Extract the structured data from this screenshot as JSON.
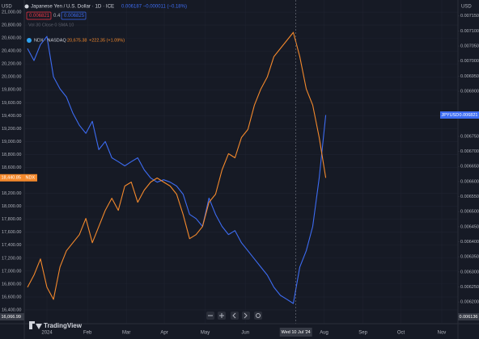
{
  "header": {
    "left_unit": "USD",
    "right_unit": "USD",
    "title": "Japanese Yen / U.S. Dollar · 1D · ICE",
    "sell": "0.006821",
    "spread": "0.4",
    "buy": "0.006825",
    "change": "0.006187 −0.000011 (−0.18%)",
    "indicator": "Vol 30 Close 0 SMA 10",
    "compare_symbol": "NDX · NASDAQ",
    "compare_price": "20,675.38",
    "compare_change": "+222.35 (+1.09%)",
    "logo": "TradingView"
  },
  "chart_data": {
    "type": "line",
    "xlim": [
      -0.5,
      66.4
    ],
    "xticks": [
      {
        "value": 3,
        "label": "2024"
      },
      {
        "value": 9.25,
        "label": "Feb"
      },
      {
        "value": 15.25,
        "label": "Mar"
      },
      {
        "value": 21.1,
        "label": "Apr"
      },
      {
        "value": 27.4,
        "label": "May"
      },
      {
        "value": 33.6,
        "label": "Jun"
      },
      {
        "value": 45.75,
        "label": "Aug"
      },
      {
        "value": 51.75,
        "label": "Sep"
      },
      {
        "value": 57.6,
        "label": "Oct"
      },
      {
        "value": 63.9,
        "label": "Nov"
      }
    ],
    "ylim": [
      16187.5,
      21187.5
    ],
    "yticks": [
      {
        "value": 16400,
        "label": "16,400.00"
      },
      {
        "value": 16600,
        "label": "16,600.00"
      },
      {
        "value": 16800,
        "label": "16,800.00"
      },
      {
        "value": 17000,
        "label": "17,000.00"
      },
      {
        "value": 17200,
        "label": "17,200.00"
      },
      {
        "value": 17400,
        "label": "17,400.00"
      },
      {
        "value": 17600,
        "label": "17,600.00"
      },
      {
        "value": 17800,
        "label": "17,800.00"
      },
      {
        "value": 18000,
        "label": "18,000.00"
      },
      {
        "value": 18200,
        "label": "18,200.00"
      },
      {
        "value": 18600,
        "label": "18,600.00"
      },
      {
        "value": 18800,
        "label": "18,800.00"
      },
      {
        "value": 19000,
        "label": "19,000.00"
      },
      {
        "value": 19200,
        "label": "19,200.00"
      },
      {
        "value": 19400,
        "label": "19,400.00"
      },
      {
        "value": 19600,
        "label": "19,600.00"
      },
      {
        "value": 19800,
        "label": "19,800.00"
      },
      {
        "value": 20000,
        "label": "20,000.00"
      },
      {
        "value": 20200,
        "label": "20,200.00"
      },
      {
        "value": 20400,
        "label": "20,400.00"
      },
      {
        "value": 20600,
        "label": "20,600.00"
      },
      {
        "value": 20800,
        "label": "20,800.00"
      },
      {
        "value": 21000,
        "label": "21,000.00"
      }
    ],
    "y2lim": [
      0.006128,
      0.007203
    ],
    "y2ticks": [
      {
        "value": 0.0062,
        "label": "0.006200"
      },
      {
        "value": 0.00625,
        "label": "0.006250"
      },
      {
        "value": 0.0063,
        "label": "0.006300"
      },
      {
        "value": 0.00635,
        "label": "0.006350"
      },
      {
        "value": 0.0064,
        "label": "0.006400"
      },
      {
        "value": 0.00645,
        "label": "0.006450"
      },
      {
        "value": 0.0065,
        "label": "0.006500"
      },
      {
        "value": 0.00655,
        "label": "0.006550"
      },
      {
        "value": 0.0066,
        "label": "0.006600"
      },
      {
        "value": 0.00665,
        "label": "0.006650"
      },
      {
        "value": 0.0067,
        "label": "0.006700"
      },
      {
        "value": 0.00675,
        "label": "0.006750"
      },
      {
        "value": 0.0069,
        "label": "0.006900"
      },
      {
        "value": 0.00695,
        "label": "0.006950"
      },
      {
        "value": 0.007,
        "label": "0.007000"
      },
      {
        "value": 0.00705,
        "label": "0.007050"
      },
      {
        "value": 0.0071,
        "label": "0.007100"
      },
      {
        "value": 0.00715,
        "label": "0.007150"
      }
    ],
    "grid": true,
    "series": [
      {
        "name": "JPYUSD",
        "color": "#3d6cf2",
        "axis": "y2",
        "tag": "0.006821",
        "values": [
          0.007042,
          0.007002,
          0.007055,
          0.007082,
          0.006948,
          0.006908,
          0.006881,
          0.006827,
          0.006787,
          0.00676,
          0.0068,
          0.006706,
          0.006733,
          0.006679,
          0.006666,
          0.006652,
          0.006666,
          0.006679,
          0.006639,
          0.006612,
          0.006598,
          0.006606,
          0.006598,
          0.006585,
          0.006558,
          0.006491,
          0.006477,
          0.006451,
          0.006545,
          0.006491,
          0.006451,
          0.006424,
          0.006437,
          0.006397,
          0.00637,
          0.006343,
          0.006316,
          0.006289,
          0.006249,
          0.006222,
          0.006209,
          0.006195,
          0.006316,
          0.00637,
          0.006451,
          0.006612,
          0.006821
        ]
      },
      {
        "name": "NDX",
        "color": "#f4892c",
        "axis": "y",
        "tag": "18,440.85",
        "values": [
          16750,
          16938,
          17188,
          16750,
          16563,
          17063,
          17313,
          17438,
          17563,
          17813,
          17438,
          17688,
          17938,
          18125,
          17938,
          18313,
          18375,
          18063,
          18250,
          18375,
          18438,
          18375,
          18313,
          18188,
          17875,
          17500,
          17563,
          17688,
          18063,
          18188,
          18563,
          18813,
          18750,
          19063,
          19188,
          19563,
          19813,
          20000,
          20313,
          20438,
          20563,
          20688,
          20313,
          19813,
          19563,
          19063,
          18441
        ]
      }
    ],
    "crosshair": {
      "x": 41.4,
      "label": "Wed 10 Jul '24",
      "y_label": "16,066.99",
      "y2_label": "0.006136"
    }
  }
}
